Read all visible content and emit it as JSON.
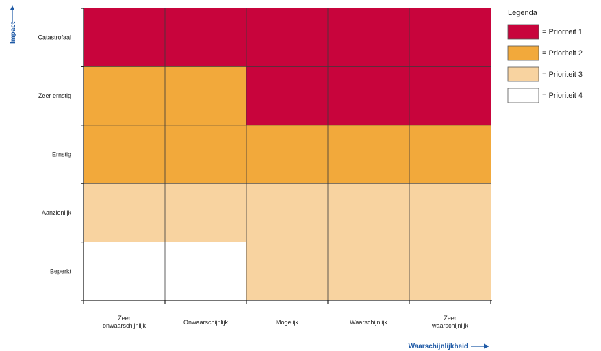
{
  "chart_data": {
    "type": "heatmap",
    "xlabel": "Waarschijnlijkheid",
    "ylabel": "Impact",
    "x_categories": [
      "Zeer onwaarschijnlijk",
      "Onwaarschijnlijk",
      "Mogelijk",
      "Waarschijnlijk",
      "Zeer waarschijnlijk"
    ],
    "y_categories": [
      "Catastrofaal",
      "Zeer ernstig",
      "Ernstig",
      "Aanzienlijk",
      "Beperkt"
    ],
    "x_categories_lines": [
      [
        "Zeer",
        "onwaarschijnlijk"
      ],
      [
        "Onwaarschijnlijk"
      ],
      [
        "Mogelijk"
      ],
      [
        "Waarschijnlijk"
      ],
      [
        "Zeer",
        "waarschijnlijk"
      ]
    ],
    "priority_grid": [
      [
        1,
        1,
        1,
        1,
        1
      ],
      [
        2,
        2,
        1,
        1,
        1
      ],
      [
        2,
        2,
        2,
        2,
        2
      ],
      [
        3,
        3,
        3,
        3,
        3
      ],
      [
        4,
        4,
        3,
        3,
        3
      ]
    ],
    "legend": {
      "title": "Legenda",
      "placement": "right",
      "entries": [
        {
          "priority": 1,
          "label": "= Prioriteit 1",
          "color": "#c8043c"
        },
        {
          "priority": 2,
          "label": "= Prioriteit 2",
          "color": "#f2a93b"
        },
        {
          "priority": 3,
          "label": "= Prioriteit 3",
          "color": "#f8d3a0"
        },
        {
          "priority": 4,
          "label": "= Prioriteit 4",
          "color": "#ffffff"
        }
      ]
    },
    "axis_label_color": "#1f5aa6"
  }
}
